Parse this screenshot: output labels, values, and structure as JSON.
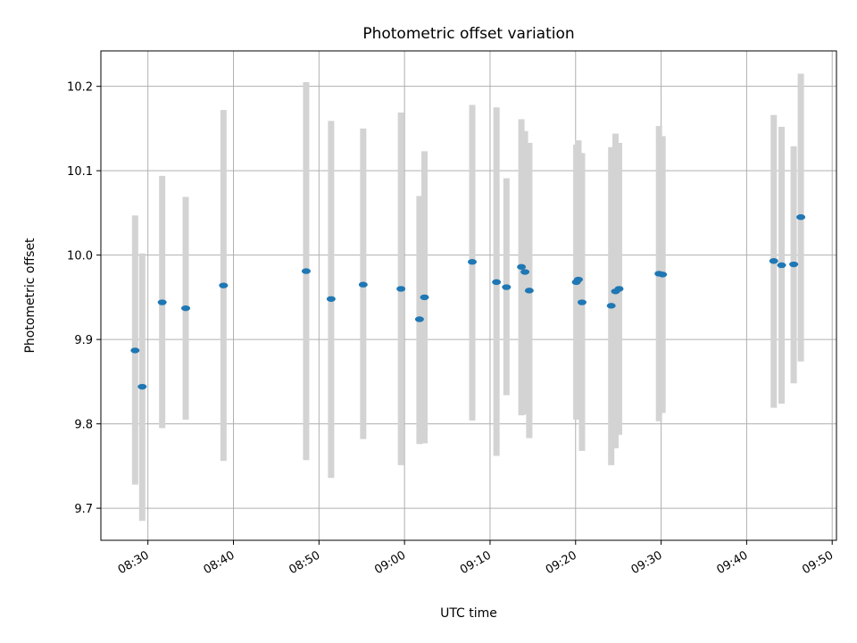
{
  "chart_data": {
    "type": "scatter",
    "title": "Photometric offset variation",
    "xlabel": "UTC time",
    "ylabel": "Photometric offset",
    "xlim": [
      "08:24:30",
      "09:50:30"
    ],
    "ylim": [
      9.662,
      10.242
    ],
    "x_ticks": [
      "08:30",
      "08:40",
      "08:50",
      "09:00",
      "09:10",
      "09:20",
      "09:30",
      "09:40",
      "09:50"
    ],
    "y_ticks": [
      9.7,
      9.8,
      9.9,
      10.0,
      10.1,
      10.2
    ],
    "y_tick_labels": [
      "9.7",
      "9.8",
      "9.9",
      "10.0",
      "10.1",
      "10.2"
    ],
    "grid": true,
    "colors": {
      "point": "#1f77b4",
      "errorbar": "#d3d3d3",
      "grid": "#b0b0b0"
    },
    "series": [
      {
        "points": [
          {
            "t": "08:28:30",
            "y": 9.887,
            "lo": 9.728,
            "hi": 10.047
          },
          {
            "t": "08:29:20",
            "y": 9.844,
            "lo": 9.685,
            "hi": 10.002
          },
          {
            "t": "08:31:40",
            "y": 9.944,
            "lo": 9.795,
            "hi": 10.094
          },
          {
            "t": "08:34:25",
            "y": 9.937,
            "lo": 9.805,
            "hi": 10.069
          },
          {
            "t": "08:38:50",
            "y": 9.964,
            "lo": 9.756,
            "hi": 10.172
          },
          {
            "t": "08:48:30",
            "y": 9.981,
            "lo": 9.757,
            "hi": 10.205
          },
          {
            "t": "08:51:25",
            "y": 9.948,
            "lo": 9.736,
            "hi": 10.159
          },
          {
            "t": "08:55:10",
            "y": 9.965,
            "lo": 9.782,
            "hi": 10.15
          },
          {
            "t": "08:59:35",
            "y": 9.96,
            "lo": 9.751,
            "hi": 10.169
          },
          {
            "t": "09:01:45",
            "y": 9.924,
            "lo": 9.776,
            "hi": 10.07
          },
          {
            "t": "09:02:20",
            "y": 9.95,
            "lo": 9.777,
            "hi": 10.123
          },
          {
            "t": "09:07:55",
            "y": 9.992,
            "lo": 9.804,
            "hi": 10.178
          },
          {
            "t": "09:10:45",
            "y": 9.968,
            "lo": 9.762,
            "hi": 10.175
          },
          {
            "t": "09:11:55",
            "y": 9.962,
            "lo": 9.834,
            "hi": 10.091
          },
          {
            "t": "09:13:40",
            "y": 9.986,
            "lo": 9.81,
            "hi": 10.161
          },
          {
            "t": "09:14:05",
            "y": 9.98,
            "lo": 9.811,
            "hi": 10.147
          },
          {
            "t": "09:14:35",
            "y": 9.958,
            "lo": 9.783,
            "hi": 10.133
          },
          {
            "t": "09:20:05",
            "y": 9.968,
            "lo": 9.805,
            "hi": 10.131
          },
          {
            "t": "09:20:20",
            "y": 9.971,
            "lo": 9.806,
            "hi": 10.136
          },
          {
            "t": "09:20:45",
            "y": 9.944,
            "lo": 9.768,
            "hi": 10.121
          },
          {
            "t": "09:24:10",
            "y": 9.94,
            "lo": 9.751,
            "hi": 10.128
          },
          {
            "t": "09:24:40",
            "y": 9.957,
            "lo": 9.771,
            "hi": 10.144
          },
          {
            "t": "09:25:05",
            "y": 9.96,
            "lo": 9.787,
            "hi": 10.133
          },
          {
            "t": "09:29:45",
            "y": 9.978,
            "lo": 9.803,
            "hi": 10.153
          },
          {
            "t": "09:30:10",
            "y": 9.977,
            "lo": 9.813,
            "hi": 10.141
          },
          {
            "t": "09:43:10",
            "y": 9.993,
            "lo": 9.819,
            "hi": 10.166
          },
          {
            "t": "09:44:05",
            "y": 9.988,
            "lo": 9.824,
            "hi": 10.152
          },
          {
            "t": "09:45:30",
            "y": 9.989,
            "lo": 9.848,
            "hi": 10.129
          },
          {
            "t": "09:46:20",
            "y": 10.045,
            "lo": 9.874,
            "hi": 10.215
          }
        ]
      }
    ]
  }
}
